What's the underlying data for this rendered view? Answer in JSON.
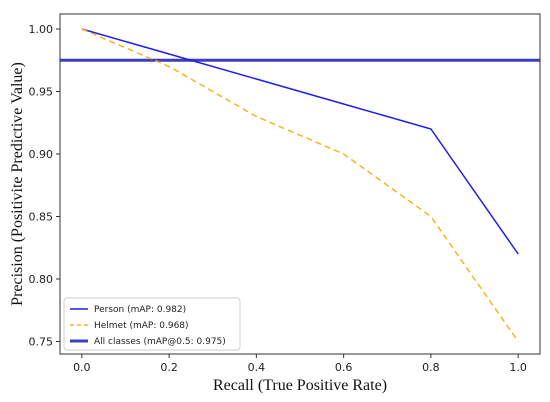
{
  "chart_data": {
    "type": "line",
    "title": "",
    "xlabel": "Recall (True Positive Rate)",
    "ylabel": "Precision (Positivite Predictive Value)",
    "xlim": [
      -0.05,
      1.05
    ],
    "ylim": [
      0.74,
      1.012
    ],
    "x_ticks": [
      0.0,
      0.2,
      0.4,
      0.6,
      0.8,
      1.0
    ],
    "x_tick_labels": [
      "0.0",
      "0.2",
      "0.4",
      "0.6",
      "0.8",
      "1.0"
    ],
    "y_ticks": [
      0.75,
      0.8,
      0.85,
      0.9,
      0.95,
      1.0
    ],
    "y_tick_labels": [
      "0.75",
      "0.80",
      "0.85",
      "0.90",
      "0.95",
      "1.00"
    ],
    "grid": false,
    "legend_position": "bottom-left",
    "series": [
      {
        "name": "Person (mAP: 0.982)",
        "color": "#1f1fe8",
        "style": "solid",
        "x": [
          0.0,
          0.2,
          0.4,
          0.6,
          0.8,
          1.0
        ],
        "y": [
          1.0,
          0.98,
          0.96,
          0.94,
          0.92,
          0.82
        ]
      },
      {
        "name": "Helmet (mAP: 0.968)",
        "color": "#f5b324",
        "style": "dashed",
        "x": [
          0.0,
          0.2,
          0.4,
          0.6,
          0.8,
          1.0
        ],
        "y": [
          1.0,
          0.97,
          0.93,
          0.9,
          0.85,
          0.75
        ]
      },
      {
        "name": "All classes (mAP@0.5: 0.975)",
        "color": "#3d3dc4",
        "style": "solid-thick",
        "x": [
          -0.05,
          1.05
        ],
        "y": [
          0.975,
          0.975
        ]
      }
    ]
  }
}
